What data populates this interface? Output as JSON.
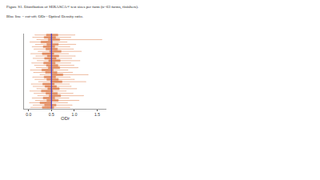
{
  "caption": [
    "Figure S1. Distribution of SERASCA® test sizes per farm (n=63 farms, finishers).",
    "Blue line = cut-off; ODr - Optical Density ratio."
  ],
  "chart_data": {
    "type": "box",
    "orientation": "horizontal",
    "x_label": "ODr",
    "xlim": [
      -0.1,
      1.7
    ],
    "xticks": [
      {
        "value": 0,
        "label": "0.0"
      },
      {
        "value": 0.5,
        "label": "0.5"
      },
      {
        "value": 1,
        "label": "1.0"
      },
      {
        "value": 1.5,
        "label": "1.5"
      }
    ],
    "tick_labels": "x",
    "grid": false,
    "color": "#d9662a",
    "cutoff": {
      "value": 0.5,
      "color": "#3b3bd6"
    },
    "categories": [
      null,
      null,
      null,
      null,
      null,
      null,
      null,
      null,
      null,
      null,
      null,
      null,
      null,
      null,
      null,
      null,
      null,
      null,
      null,
      null,
      null,
      null,
      null,
      null,
      null,
      null,
      null,
      null,
      null,
      null,
      null,
      null
    ],
    "min": [
      0.05,
      0.1,
      0.02,
      0.15,
      0.08,
      0.2,
      0.12,
      0.03,
      0.18,
      0.1,
      0.06,
      0.22,
      0.14,
      0.09,
      0.25,
      0.11,
      0.04,
      0.17,
      0.13,
      0.07,
      0.19,
      0.1,
      0.16,
      0.05,
      0.21,
      0.12,
      0.08,
      0.15,
      0.03,
      0.18,
      0.09,
      0.14
    ],
    "q1": [
      0.3,
      0.35,
      0.25,
      0.4,
      0.32,
      0.45,
      0.38,
      0.28,
      0.42,
      0.36,
      0.31,
      0.48,
      0.4,
      0.34,
      0.5,
      0.37,
      0.29,
      0.43,
      0.39,
      0.33,
      0.44,
      0.35,
      0.41,
      0.3,
      0.46,
      0.38,
      0.32,
      0.4,
      0.27,
      0.43,
      0.34,
      0.39
    ],
    "median": [
      0.42,
      0.47,
      0.37,
      0.52,
      0.44,
      0.57,
      0.5,
      0.4,
      0.54,
      0.48,
      0.43,
      0.6,
      0.52,
      0.46,
      0.62,
      0.49,
      0.41,
      0.55,
      0.51,
      0.45,
      0.56,
      0.47,
      0.53,
      0.42,
      0.58,
      0.5,
      0.44,
      0.52,
      0.39,
      0.55,
      0.46,
      0.51
    ],
    "q3": [
      0.55,
      0.6,
      0.5,
      0.65,
      0.57,
      0.7,
      0.63,
      0.53,
      0.67,
      0.61,
      0.56,
      0.73,
      0.65,
      0.59,
      0.75,
      0.62,
      0.54,
      0.68,
      0.64,
      0.58,
      0.69,
      0.6,
      0.66,
      0.55,
      0.71,
      0.63,
      0.57,
      0.65,
      0.52,
      0.68,
      0.59,
      0.64
    ],
    "max": [
      0.9,
      0.95,
      0.85,
      1.1,
      0.88,
      1.2,
      0.97,
      0.82,
      1.05,
      0.93,
      0.89,
      1.25,
      1.0,
      0.91,
      1.3,
      0.96,
      0.86,
      1.08,
      0.99,
      0.92,
      1.12,
      0.94,
      1.02,
      0.87,
      1.15,
      0.98,
      0.9,
      1.03,
      0.84,
      1.6,
      0.92,
      1.01
    ]
  }
}
